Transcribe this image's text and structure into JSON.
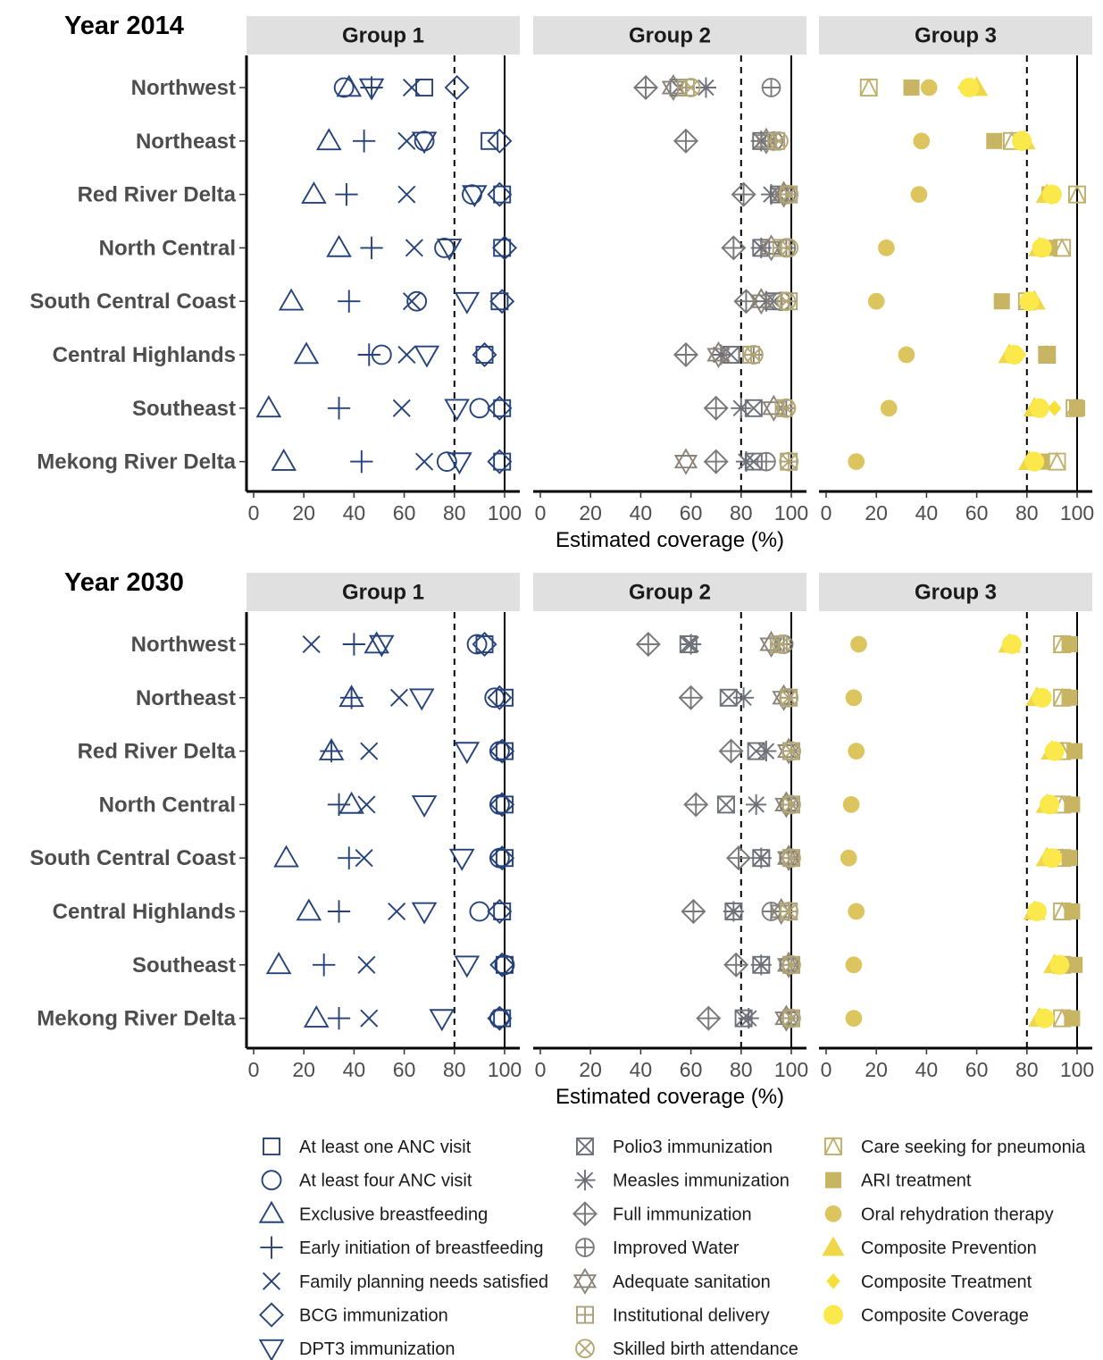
{
  "chart_data": {
    "type": "scatter",
    "xlabel": "Estimated coverage (%)",
    "xlim": [
      0,
      100
    ],
    "x_ticks": [
      0,
      20,
      40,
      60,
      80,
      100
    ],
    "reference_lines": [
      {
        "x": 80,
        "style": "dashed"
      },
      {
        "x": 100,
        "style": "solid"
      }
    ],
    "groups": [
      "Group 1",
      "Group 2",
      "Group 3"
    ],
    "regions": [
      "Northwest",
      "Northeast",
      "Red River Delta",
      "North Central",
      "South Central Coast",
      "Central Highlands",
      "Southeast",
      "Mekong River Delta"
    ],
    "indicators": [
      {
        "name": "At least one ANC visit",
        "group": 0,
        "shape": "square-open",
        "color": "#26427a"
      },
      {
        "name": "At least four ANC visit",
        "group": 0,
        "shape": "circle-open",
        "color": "#26427a"
      },
      {
        "name": "Exclusive breastfeeding",
        "group": 0,
        "shape": "triangle-open",
        "color": "#26427a"
      },
      {
        "name": "Early initiation of breastfeeding",
        "group": 0,
        "shape": "plus",
        "color": "#26427a"
      },
      {
        "name": "Family planning needs satisfied",
        "group": 0,
        "shape": "cross",
        "color": "#26427a"
      },
      {
        "name": "BCG immunization",
        "group": 0,
        "shape": "diamond-open",
        "color": "#26427a"
      },
      {
        "name": "DPT3 immunization",
        "group": 0,
        "shape": "triangle-down-open",
        "color": "#26427a"
      },
      {
        "name": "Polio3 immunization",
        "group": 1,
        "shape": "square-cross",
        "color": "#6d7079"
      },
      {
        "name": "Measles immunization",
        "group": 1,
        "shape": "asterisk",
        "color": "#6d7079"
      },
      {
        "name": "Full immunization",
        "group": 1,
        "shape": "diamond-plus",
        "color": "#77787a"
      },
      {
        "name": "Improved Water",
        "group": 1,
        "shape": "circle-plus",
        "color": "#7c7c7c"
      },
      {
        "name": "Adequate sanitation",
        "group": 1,
        "shape": "star-of-david",
        "color": "#8a8478"
      },
      {
        "name": "Institutional delivery",
        "group": 1,
        "shape": "square-plus",
        "color": "#aca17b"
      },
      {
        "name": "Skilled birth attendance",
        "group": 1,
        "shape": "circle-cross",
        "color": "#b4a772"
      },
      {
        "name": "Care seeking for pneumonia",
        "group": 2,
        "shape": "square-triangle",
        "color": "#bfb06b"
      },
      {
        "name": "ARI treatment",
        "group": 2,
        "shape": "square-filled",
        "color": "#c8b564"
      },
      {
        "name": "Oral rehydration therapy",
        "group": 2,
        "shape": "circle-filled",
        "color": "#dcc45e"
      },
      {
        "name": "Composite Prevention",
        "group": 2,
        "shape": "triangle-filled",
        "color": "#f0d74a"
      },
      {
        "name": "Composite Treatment",
        "group": 2,
        "shape": "diamond-filled",
        "color": "#f7df3a"
      },
      {
        "name": "Composite Coverage",
        "group": 2,
        "shape": "circle-filled-large",
        "color": "#fbe84a"
      }
    ],
    "panels": [
      {
        "year": "Year 2014",
        "values": {
          "At least one ANC visit": [
            68,
            94,
            99,
            99,
            98,
            92,
            99,
            99
          ],
          "At least four ANC visit": [
            36,
            68,
            87,
            76,
            65,
            51,
            90,
            77
          ],
          "Exclusive breastfeeding": [
            38,
            30,
            24,
            34,
            15,
            21,
            6,
            12
          ],
          "Early initiation of breastfeeding": [
            47,
            44,
            37,
            47,
            38,
            46,
            34,
            43
          ],
          "Family planning needs satisfied": [
            63,
            61,
            61,
            64,
            63,
            61,
            59,
            68
          ],
          "BCG immunization": [
            81,
            98,
            98,
            100,
            99,
            92,
            98,
            98
          ],
          "DPT3 immunization": [
            47,
            68,
            88,
            78,
            85,
            69,
            81,
            82
          ],
          "Polio3 immunization": [
            55,
            88,
            95,
            88,
            93,
            76,
            85,
            85
          ],
          "Measles immunization": [
            66,
            88,
            92,
            88,
            90,
            72,
            80,
            82
          ],
          "Full immunization": [
            42,
            58,
            81,
            77,
            82,
            58,
            70,
            70
          ],
          "Improved Water": [
            92,
            93,
            98,
            98,
            96,
            85,
            98,
            90
          ],
          "Adequate sanitation": [
            53,
            90,
            97,
            92,
            88,
            71,
            93,
            58
          ],
          "Institutional delivery": [
            58,
            94,
            99,
            96,
            99,
            84,
            97,
            99
          ],
          "Skilled birth attendance": [
            60,
            95,
            99,
            99,
            98,
            85,
            98,
            99
          ],
          "Care seeking for pneumonia": [
            17,
            74,
            100,
            94,
            80,
            88,
            99,
            92
          ],
          "ARI treatment": [
            34,
            67,
            89,
            89,
            70,
            88,
            100,
            86
          ],
          "Oral rehydration therapy": [
            41,
            38,
            37,
            24,
            20,
            32,
            25,
            12
          ],
          "Composite Prevention": [
            60,
            79,
            88,
            85,
            83,
            73,
            83,
            81
          ],
          "Composite Treatment": [
            55,
            79,
            89,
            87,
            82,
            77,
            91,
            84
          ],
          "Composite Coverage": [
            57,
            78,
            90,
            86,
            81,
            75,
            85,
            83
          ]
        }
      },
      {
        "year": "Year 2030",
        "values": {
          "At least one ANC visit": [
            92,
            100,
            100,
            100,
            100,
            99,
            100,
            99
          ],
          "At least four ANC visit": [
            89,
            96,
            98,
            98,
            98,
            90,
            100,
            98
          ],
          "Exclusive breastfeeding": [
            49,
            39,
            31,
            39,
            13,
            22,
            10,
            25
          ],
          "Early initiation of breastfeeding": [
            40,
            39,
            31,
            34,
            38,
            34,
            28,
            34
          ],
          "Family planning needs satisfied": [
            23,
            58,
            46,
            45,
            44,
            57,
            45,
            46
          ],
          "BCG immunization": [
            92,
            98,
            99,
            99,
            99,
            98,
            99,
            98
          ],
          "DPT3 immunization": [
            51,
            67,
            85,
            68,
            83,
            68,
            85,
            75
          ],
          "Polio3 immunization": [
            59,
            75,
            86,
            74,
            88,
            77,
            88,
            81
          ],
          "Measles immunization": [
            60,
            81,
            90,
            86,
            88,
            77,
            88,
            83
          ],
          "Full immunization": [
            43,
            60,
            76,
            62,
            79,
            61,
            78,
            67
          ],
          "Improved Water": [
            97,
            99,
            100,
            99,
            99,
            92,
            99,
            99
          ],
          "Adequate sanitation": [
            92,
            97,
            99,
            98,
            99,
            96,
            99,
            98
          ],
          "Institutional delivery": [
            95,
            99,
            100,
            100,
            100,
            99,
            100,
            100
          ],
          "Skilled birth attendance": [
            96,
            99,
            100,
            100,
            100,
            99,
            100,
            100
          ],
          "Care seeking for pneumonia": [
            94,
            94,
            94,
            94,
            94,
            94,
            94,
            94
          ],
          "ARI treatment": [
            97,
            97,
            99,
            98,
            97,
            98,
            99,
            98
          ],
          "Oral rehydration therapy": [
            13,
            11,
            12,
            10,
            9,
            12,
            11,
            11
          ],
          "Composite Prevention": [
            73,
            84,
            90,
            88,
            88,
            83,
            91,
            85
          ],
          "Composite Treatment": [
            75,
            86,
            92,
            90,
            90,
            84,
            92,
            87
          ],
          "Composite Coverage": [
            74,
            86,
            91,
            89,
            90,
            84,
            93,
            87
          ]
        }
      }
    ],
    "legend_position": "bottom"
  }
}
